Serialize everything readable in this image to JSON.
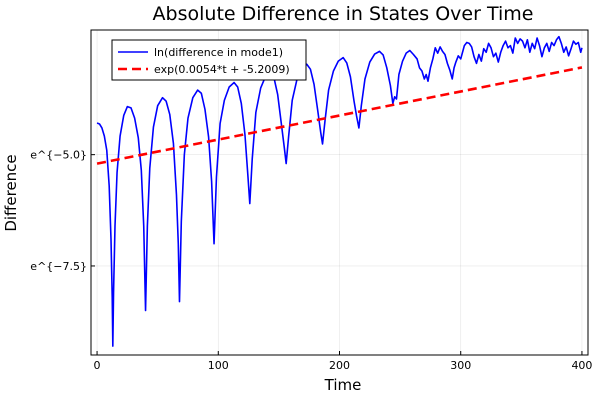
{
  "chart_data": {
    "type": "line",
    "title": "Absolute Difference in States Over Time",
    "xlabel": "Time",
    "ylabel": "Difference",
    "xlim": [
      -5,
      405
    ],
    "ylim": [
      -9.5,
      -2.2
    ],
    "x_ticks": [
      0,
      100,
      200,
      300,
      400
    ],
    "x_tick_labels": [
      "0",
      "100",
      "200",
      "300",
      "400"
    ],
    "y_ticks": [
      -5.0,
      -7.5
    ],
    "y_tick_labels": [
      "e^{−5.0}",
      "e^{−7.5}"
    ],
    "grid": true,
    "legend_position": "top-left",
    "series": [
      {
        "name": "ln(difference in mode1)",
        "color": "#0000ff",
        "style": "solid",
        "points": [
          [
            0,
            -4.29
          ],
          [
            2,
            -4.31
          ],
          [
            4,
            -4.4
          ],
          [
            6,
            -4.58
          ],
          [
            8,
            -4.9
          ],
          [
            10,
            -5.7
          ],
          [
            11.5,
            -6.9
          ],
          [
            12.5,
            -8.2
          ],
          [
            13,
            -9.3
          ],
          [
            13.6,
            -8.1
          ],
          [
            14.8,
            -6.6
          ],
          [
            16.5,
            -5.4
          ],
          [
            19,
            -4.58
          ],
          [
            22,
            -4.12
          ],
          [
            25,
            -3.92
          ],
          [
            28,
            -3.95
          ],
          [
            31,
            -4.18
          ],
          [
            34,
            -4.62
          ],
          [
            36.5,
            -5.35
          ],
          [
            38.5,
            -6.6
          ],
          [
            40,
            -8.5
          ],
          [
            41.5,
            -6.6
          ],
          [
            43.5,
            -5.3
          ],
          [
            46.5,
            -4.38
          ],
          [
            50,
            -3.9
          ],
          [
            54,
            -3.72
          ],
          [
            57,
            -3.8
          ],
          [
            60,
            -4.1
          ],
          [
            63,
            -4.75
          ],
          [
            65.5,
            -5.9
          ],
          [
            67,
            -7.0
          ],
          [
            68,
            -8.3
          ],
          [
            69.5,
            -6.5
          ],
          [
            72,
            -5.0
          ],
          [
            75,
            -4.18
          ],
          [
            79,
            -3.72
          ],
          [
            83,
            -3.55
          ],
          [
            86,
            -3.62
          ],
          [
            89,
            -3.98
          ],
          [
            92,
            -4.6
          ],
          [
            94.5,
            -5.6
          ],
          [
            96.5,
            -7.0
          ],
          [
            98.5,
            -5.5
          ],
          [
            101.5,
            -4.3
          ],
          [
            105,
            -3.78
          ],
          [
            109,
            -3.48
          ],
          [
            113,
            -3.38
          ],
          [
            116,
            -3.48
          ],
          [
            119,
            -3.85
          ],
          [
            122,
            -4.55
          ],
          [
            124.5,
            -5.5
          ],
          [
            126,
            -6.1
          ],
          [
            128,
            -5.1
          ],
          [
            131,
            -4.05
          ],
          [
            135,
            -3.5
          ],
          [
            139,
            -3.24
          ],
          [
            143,
            -3.16
          ],
          [
            146,
            -3.28
          ],
          [
            149,
            -3.65
          ],
          [
            152,
            -4.3
          ],
          [
            154.5,
            -4.85
          ],
          [
            156,
            -5.2
          ],
          [
            158,
            -4.6
          ],
          [
            161,
            -3.78
          ],
          [
            165,
            -3.3
          ],
          [
            169,
            -3.07
          ],
          [
            173,
            -2.97
          ],
          [
            176,
            -3.08
          ],
          [
            179,
            -3.42
          ],
          [
            182,
            -4.0
          ],
          [
            184.5,
            -4.5
          ],
          [
            186,
            -4.76
          ],
          [
            188,
            -4.25
          ],
          [
            191,
            -3.55
          ],
          [
            195,
            -3.12
          ],
          [
            199,
            -2.9
          ],
          [
            203,
            -2.82
          ],
          [
            206,
            -2.94
          ],
          [
            209,
            -3.25
          ],
          [
            212,
            -3.8
          ],
          [
            214,
            -4.12
          ],
          [
            216,
            -4.4
          ],
          [
            218,
            -3.9
          ],
          [
            221,
            -3.3
          ],
          [
            225,
            -2.92
          ],
          [
            229,
            -2.74
          ],
          [
            233,
            -2.68
          ],
          [
            236,
            -2.76
          ],
          [
            239,
            -3.05
          ],
          [
            242,
            -3.45
          ],
          [
            244,
            -3.85
          ],
          [
            245.5,
            -3.7
          ],
          [
            247,
            -3.75
          ],
          [
            249,
            -3.2
          ],
          [
            252,
            -2.9
          ],
          [
            255,
            -2.72
          ],
          [
            258,
            -2.66
          ],
          [
            261,
            -2.75
          ],
          [
            264,
            -2.85
          ],
          [
            266,
            -3.05
          ],
          [
            268,
            -3.12
          ],
          [
            270,
            -3.3
          ],
          [
            271.5,
            -3.2
          ],
          [
            273,
            -3.35
          ],
          [
            275,
            -3.05
          ],
          [
            277,
            -2.85
          ],
          [
            279,
            -2.6
          ],
          [
            281,
            -2.72
          ],
          [
            283,
            -2.58
          ],
          [
            285,
            -2.68
          ],
          [
            287,
            -2.75
          ],
          [
            289,
            -2.95
          ],
          [
            291,
            -3.1
          ],
          [
            293,
            -3.3
          ],
          [
            294.5,
            -3.05
          ],
          [
            296,
            -2.92
          ],
          [
            298,
            -2.78
          ],
          [
            300,
            -2.85
          ],
          [
            301.5,
            -2.7
          ],
          [
            303,
            -2.55
          ],
          [
            305,
            -2.48
          ],
          [
            307,
            -2.5
          ],
          [
            309,
            -2.58
          ],
          [
            311,
            -2.8
          ],
          [
            313,
            -2.95
          ],
          [
            315,
            -2.75
          ],
          [
            317,
            -2.9
          ],
          [
            319,
            -2.62
          ],
          [
            321,
            -2.7
          ],
          [
            323,
            -2.5
          ],
          [
            325,
            -2.6
          ],
          [
            327,
            -2.8
          ],
          [
            329,
            -2.72
          ],
          [
            331,
            -2.92
          ],
          [
            333,
            -2.7
          ],
          [
            335,
            -2.55
          ],
          [
            337,
            -2.45
          ],
          [
            339,
            -2.6
          ],
          [
            341,
            -2.55
          ],
          [
            343,
            -2.72
          ],
          [
            345,
            -2.38
          ],
          [
            347,
            -2.5
          ],
          [
            349,
            -2.4
          ],
          [
            351,
            -2.45
          ],
          [
            353,
            -2.6
          ],
          [
            355,
            -2.42
          ],
          [
            357,
            -2.7
          ],
          [
            359,
            -2.5
          ],
          [
            361,
            -2.62
          ],
          [
            363,
            -2.38
          ],
          [
            365,
            -2.55
          ],
          [
            367,
            -2.8
          ],
          [
            369,
            -2.6
          ],
          [
            371,
            -2.5
          ],
          [
            373,
            -2.68
          ],
          [
            375,
            -2.48
          ],
          [
            377,
            -2.55
          ],
          [
            379,
            -2.42
          ],
          [
            381,
            -2.35
          ],
          [
            383,
            -2.5
          ],
          [
            385,
            -2.7
          ],
          [
            387,
            -2.58
          ],
          [
            389,
            -2.78
          ],
          [
            391,
            -2.62
          ],
          [
            393,
            -2.45
          ],
          [
            395,
            -2.52
          ],
          [
            397,
            -2.48
          ],
          [
            399,
            -2.7
          ],
          [
            400,
            -2.6
          ]
        ]
      },
      {
        "name": "exp(0.0054*t + -5.2009)",
        "color": "#ff0000",
        "style": "dashed",
        "fit": {
          "slope": 0.0054,
          "intercept": -5.2009
        },
        "x_range": [
          0,
          400
        ]
      }
    ]
  }
}
